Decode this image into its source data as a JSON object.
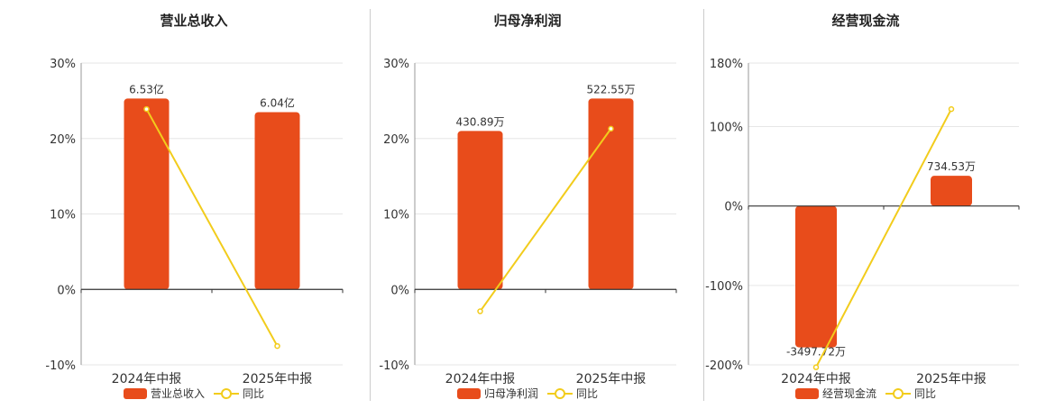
{
  "colors": {
    "bar": "#E84C1B",
    "line": "#F2CC1C",
    "axis": "#333333",
    "grid": "#e6e6e6"
  },
  "chart_data": [
    {
      "type": "bar",
      "title": "营业总收入",
      "categories": [
        "2024年中报",
        "2025年中报"
      ],
      "y_ticks": [
        "30%",
        "20%",
        "10%",
        "0%",
        "-10%"
      ],
      "ylim": [
        -10,
        30
      ],
      "series": [
        {
          "name": "营业总收入",
          "type": "bar",
          "values": [
            25.3,
            23.5
          ],
          "labels": [
            "6.53亿",
            "6.04亿"
          ]
        },
        {
          "name": "同比",
          "type": "line",
          "values": [
            23.9,
            -7.5
          ]
        }
      ],
      "grid": true,
      "legend_position": "bottom"
    },
    {
      "type": "bar",
      "title": "归母净利润",
      "categories": [
        "2024年中报",
        "2025年中报"
      ],
      "y_ticks": [
        "30%",
        "20%",
        "10%",
        "0%",
        "-10%"
      ],
      "ylim": [
        -10,
        30
      ],
      "series": [
        {
          "name": "归母净利润",
          "type": "bar",
          "values": [
            21.0,
            25.3
          ],
          "labels": [
            "430.89万",
            "522.55万"
          ]
        },
        {
          "name": "同比",
          "type": "line",
          "values": [
            -2.9,
            21.3
          ]
        }
      ],
      "grid": true,
      "legend_position": "bottom"
    },
    {
      "type": "bar",
      "title": "经营现金流",
      "categories": [
        "2024年中报",
        "2025年中报"
      ],
      "y_ticks": [
        "180%",
        "100%",
        "0%",
        "-100%",
        "-200%"
      ],
      "ylim": [
        -200,
        180
      ],
      "series": [
        {
          "name": "经营现金流",
          "type": "bar",
          "values": [
            -178,
            38
          ],
          "labels": [
            "-3497.72万",
            "734.53万"
          ]
        },
        {
          "name": "同比",
          "type": "line",
          "values": [
            -203,
            122
          ]
        }
      ],
      "grid": true,
      "legend_position": "bottom"
    }
  ]
}
